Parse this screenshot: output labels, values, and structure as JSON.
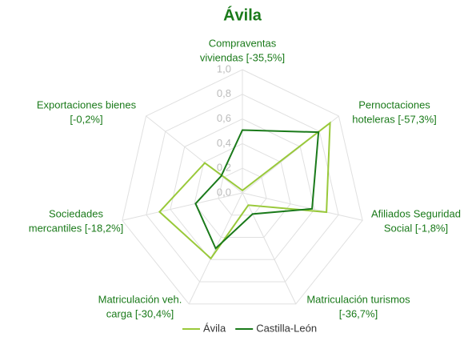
{
  "chart_data": {
    "type": "radar",
    "title": "Ávila",
    "categories": [
      [
        "Compraventas",
        "viviendas [-35,5%]"
      ],
      [
        "Pernoctaciones",
        "hoteleras [-57,3%]"
      ],
      [
        "Afiliados Seguridad",
        "Social [-1,8%]"
      ],
      [
        "Matriculación turismos",
        "[-36,7%]"
      ],
      [
        "Matriculación veh.",
        "carga [-30,4%]"
      ],
      [
        "Sociedades",
        "mercantiles [-18,2%]"
      ],
      [
        "Exportaciones bienes",
        "[-0,2%]"
      ]
    ],
    "series": [
      {
        "name": "Ávila",
        "color": "#99c93a",
        "values": [
          0.02,
          0.91,
          0.7,
          0.11,
          0.59,
          0.69,
          0.39
        ]
      },
      {
        "name": "Castilla-León",
        "color": "#1a7a1a",
        "values": [
          0.51,
          0.79,
          0.58,
          0.19,
          0.5,
          0.39,
          0.22
        ]
      }
    ],
    "ylim": [
      0,
      1
    ],
    "yticks": [
      {
        "value": 0,
        "label": "0,0"
      },
      {
        "value": 0.2,
        "label": "0,2"
      },
      {
        "value": 0.4,
        "label": "0,4"
      },
      {
        "value": 0.6,
        "label": "0,6"
      },
      {
        "value": 0.8,
        "label": "0,8"
      },
      {
        "value": 1,
        "label": "1,0"
      }
    ],
    "grid": true,
    "legend": "bottom"
  }
}
